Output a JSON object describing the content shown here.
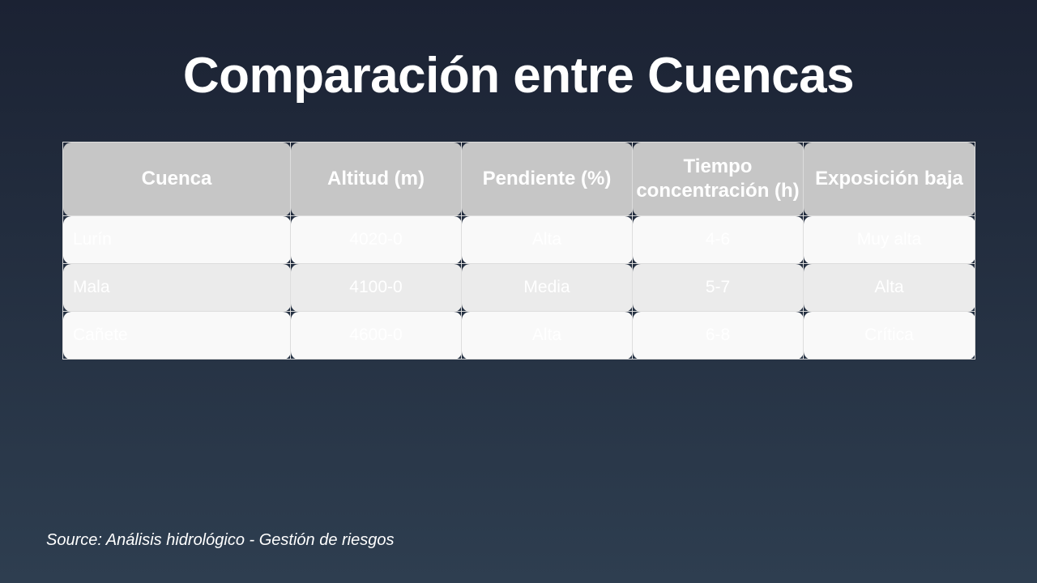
{
  "title": "Comparación entre Cuencas",
  "table": {
    "headers": [
      "Cuenca",
      "Altitud (m)",
      "Pendiente (%)",
      "Tiempo concentración (h)",
      "Exposición baja"
    ],
    "rows": [
      [
        "Lurín",
        "4020-0",
        "Alta",
        "4-6",
        "Muy alta"
      ],
      [
        "Mala",
        "4100-0",
        "Media",
        "5-7",
        "Alta"
      ],
      [
        "Cañete",
        "4600-0",
        "Alta",
        "6-8",
        "Crítica"
      ]
    ]
  },
  "source": "Source: Análisis hidrológico - Gestión de riesgos"
}
